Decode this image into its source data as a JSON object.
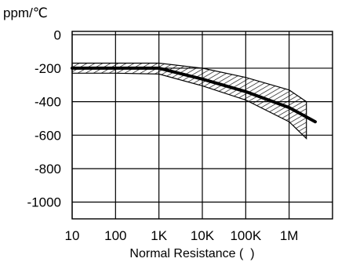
{
  "chart_data": {
    "type": "line",
    "ylabel": "ppm/℃",
    "xlabel": "Normal Resistance (  )",
    "x_scale": "log",
    "x_ticks": [
      10,
      100,
      1000,
      10000,
      100000,
      1000000
    ],
    "x_tick_labels": [
      "10",
      "100",
      "1K",
      "10K",
      "100K",
      "1M"
    ],
    "xlim": [
      10,
      10000000
    ],
    "y_ticks": [
      0,
      -200,
      -400,
      -600,
      -800,
      -1000
    ],
    "y_tick_labels": [
      "0",
      "-200",
      "-400",
      "-600",
      "-800",
      "-1000"
    ],
    "ylim": [
      -1100,
      20
    ],
    "grid": true,
    "series": [
      {
        "kind": "line",
        "x": [
          10,
          100,
          1000,
          10000,
          100000,
          1000000,
          4000000
        ],
        "y": [
          -200,
          -200,
          -200,
          -265,
          -340,
          -435,
          -520
        ]
      }
    ],
    "band": {
      "x": [
        10,
        100,
        1000,
        10000,
        100000,
        1000000,
        2500000
      ],
      "upper": [
        -170,
        -170,
        -170,
        -200,
        -255,
        -330,
        -400
      ],
      "lower": [
        -230,
        -230,
        -235,
        -305,
        -390,
        -520,
        -620
      ]
    }
  }
}
